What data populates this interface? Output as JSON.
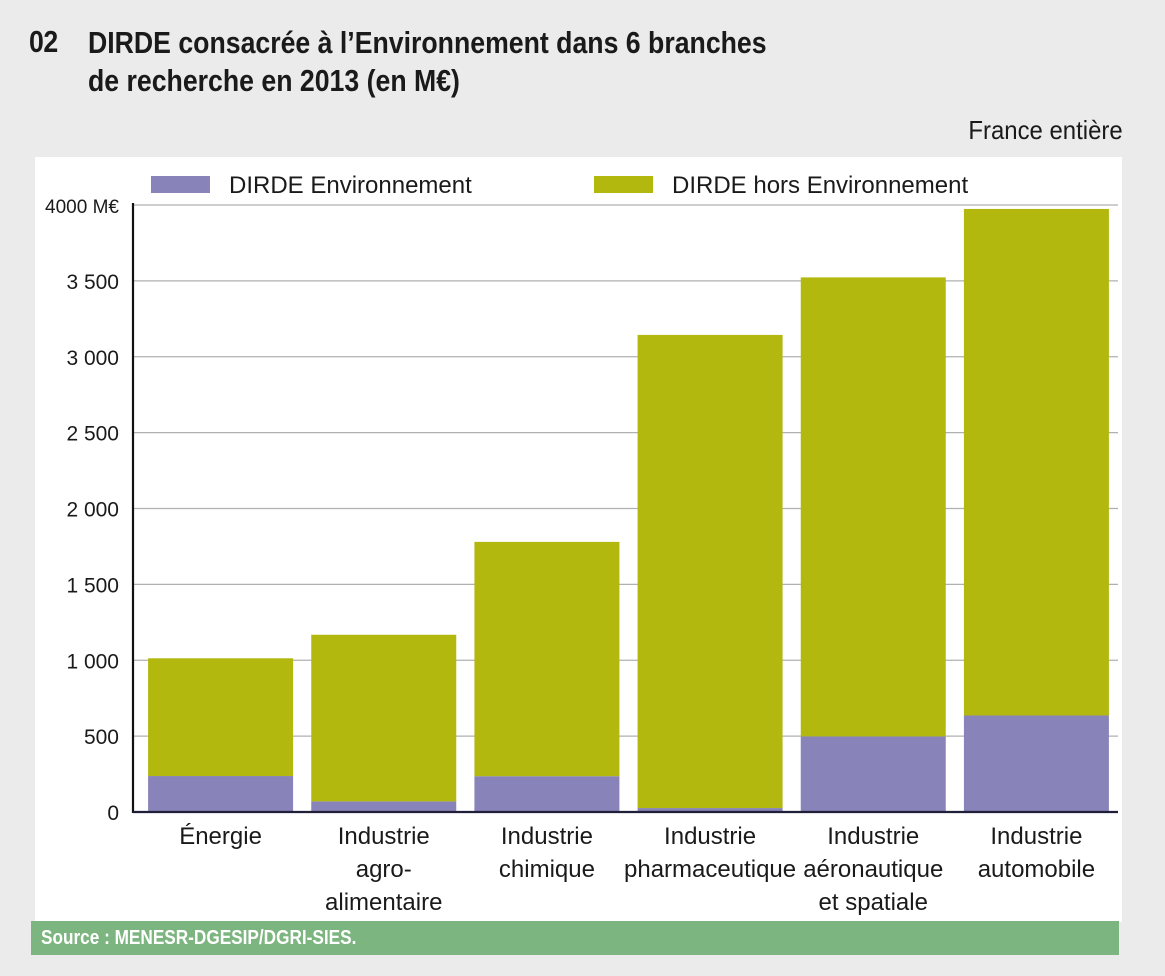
{
  "header": {
    "figure_number": "02",
    "title": "DIRDE consacrée à l’Environnement dans 6 branches de recherche en 2013 (en M€)",
    "title_lines": [
      "DIRDE consacrée à l’Environnement dans 6 branches",
      "de recherche en 2013 (en M€)"
    ],
    "scope": "France entière"
  },
  "footer": {
    "source": "Source : MENESR-DGESIP/DGRI-SIES."
  },
  "chart_data": {
    "type": "bar",
    "stacked": true,
    "title": "DIRDE consacrée à l’Environnement dans 6 branches de recherche en 2013 (en M€)",
    "xlabel": "",
    "ylabel": "M€",
    "ylim": [
      0,
      4000
    ],
    "grid": true,
    "legend_position": "top",
    "categories": [
      [
        "Énergie"
      ],
      [
        "Industrie",
        "agro-",
        "alimentaire"
      ],
      [
        "Industrie",
        "chimique"
      ],
      [
        "Industrie",
        "pharmaceutique"
      ],
      [
        "Industrie",
        "aéronautique",
        "et spatiale"
      ],
      [
        "Industrie",
        "automobile"
      ]
    ],
    "category_names": [
      "Énergie",
      "Industrie agro-alimentaire",
      "Industrie chimique",
      "Industrie pharmaceutique",
      "Industrie aéronautique et spatiale",
      "Industrie automobile"
    ],
    "series": [
      {
        "name": "DIRDE Environnement",
        "color": "#8884b9",
        "values": [
          237,
          70,
          236,
          26,
          498,
          636
        ]
      },
      {
        "name": "DIRDE hors Environnement",
        "color": "#b2b80d",
        "values": [
          776,
          1098,
          1544,
          3118,
          3025,
          3338
        ]
      }
    ],
    "totals": [
      1013,
      1168,
      1780,
      3144,
      3523,
      3974
    ],
    "y_ticks": [
      {
        "value": 0,
        "label": "0"
      },
      {
        "value": 500,
        "label": "500"
      },
      {
        "value": 1000,
        "label": "1 000"
      },
      {
        "value": 1500,
        "label": "1 500"
      },
      {
        "value": 2000,
        "label": "2 000"
      },
      {
        "value": 2500,
        "label": "2 500"
      },
      {
        "value": 3000,
        "label": "3 000"
      },
      {
        "value": 3500,
        "label": "3 500"
      },
      {
        "value": 4000,
        "label": "4000 M€"
      }
    ]
  }
}
